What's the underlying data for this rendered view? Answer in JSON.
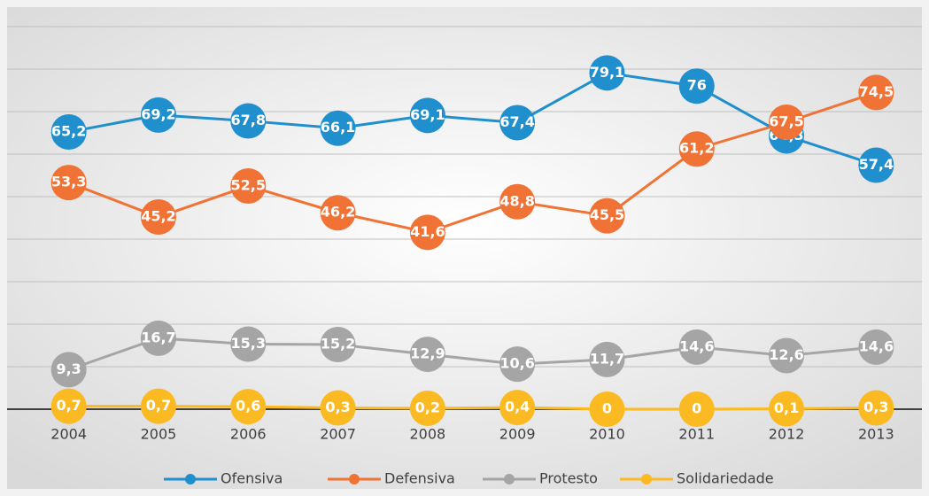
{
  "chart_data": {
    "type": "line",
    "categories": [
      "2004",
      "2005",
      "2006",
      "2007",
      "2008",
      "2009",
      "2010",
      "2011",
      "2012",
      "2013"
    ],
    "series": [
      {
        "name": "Ofensiva",
        "color": "#1f8fce",
        "values": [
          65.2,
          69.2,
          67.8,
          66.1,
          69.1,
          67.4,
          79.1,
          76,
          64.3,
          57.4
        ],
        "value_labels": [
          "65,2",
          "69,2",
          "67,8",
          "66,1",
          "69,1",
          "67,4",
          "79,1",
          "76",
          "64,3",
          "57,4"
        ]
      },
      {
        "name": "Defensiva",
        "color": "#f07335",
        "values": [
          53.3,
          45.2,
          52.5,
          46.2,
          41.6,
          48.8,
          45.5,
          61.2,
          67.5,
          74.5
        ],
        "value_labels": [
          "53,3",
          "45,2",
          "52,5",
          "46,2",
          "41,6",
          "48,8",
          "45,5",
          "61,2",
          "67,5",
          "74,5"
        ]
      },
      {
        "name": "Protesto",
        "color": "#a5a5a5",
        "values": [
          9.3,
          16.7,
          15.3,
          15.2,
          12.9,
          10.6,
          11.7,
          14.6,
          12.6,
          14.6
        ],
        "value_labels": [
          "9,3",
          "16,7",
          "15,3",
          "15,2",
          "12,9",
          "10,6",
          "11,7",
          "14,6",
          "12,6",
          "14,6"
        ]
      },
      {
        "name": "Solidariedade",
        "color": "#fbb922",
        "values": [
          0.7,
          0.7,
          0.6,
          0.3,
          0.2,
          0.4,
          0,
          0,
          0.1,
          0.3
        ],
        "value_labels": [
          "0,7",
          "0,7",
          "0,6",
          "0,3",
          "0,2",
          "0,4",
          "0",
          "0",
          "0,1",
          "0,3"
        ]
      }
    ],
    "ylim": [
      0,
      90
    ],
    "yticks": [
      0,
      10,
      20,
      30,
      40,
      50,
      60,
      70,
      80,
      90
    ],
    "grid": true,
    "legend": "bottom"
  }
}
